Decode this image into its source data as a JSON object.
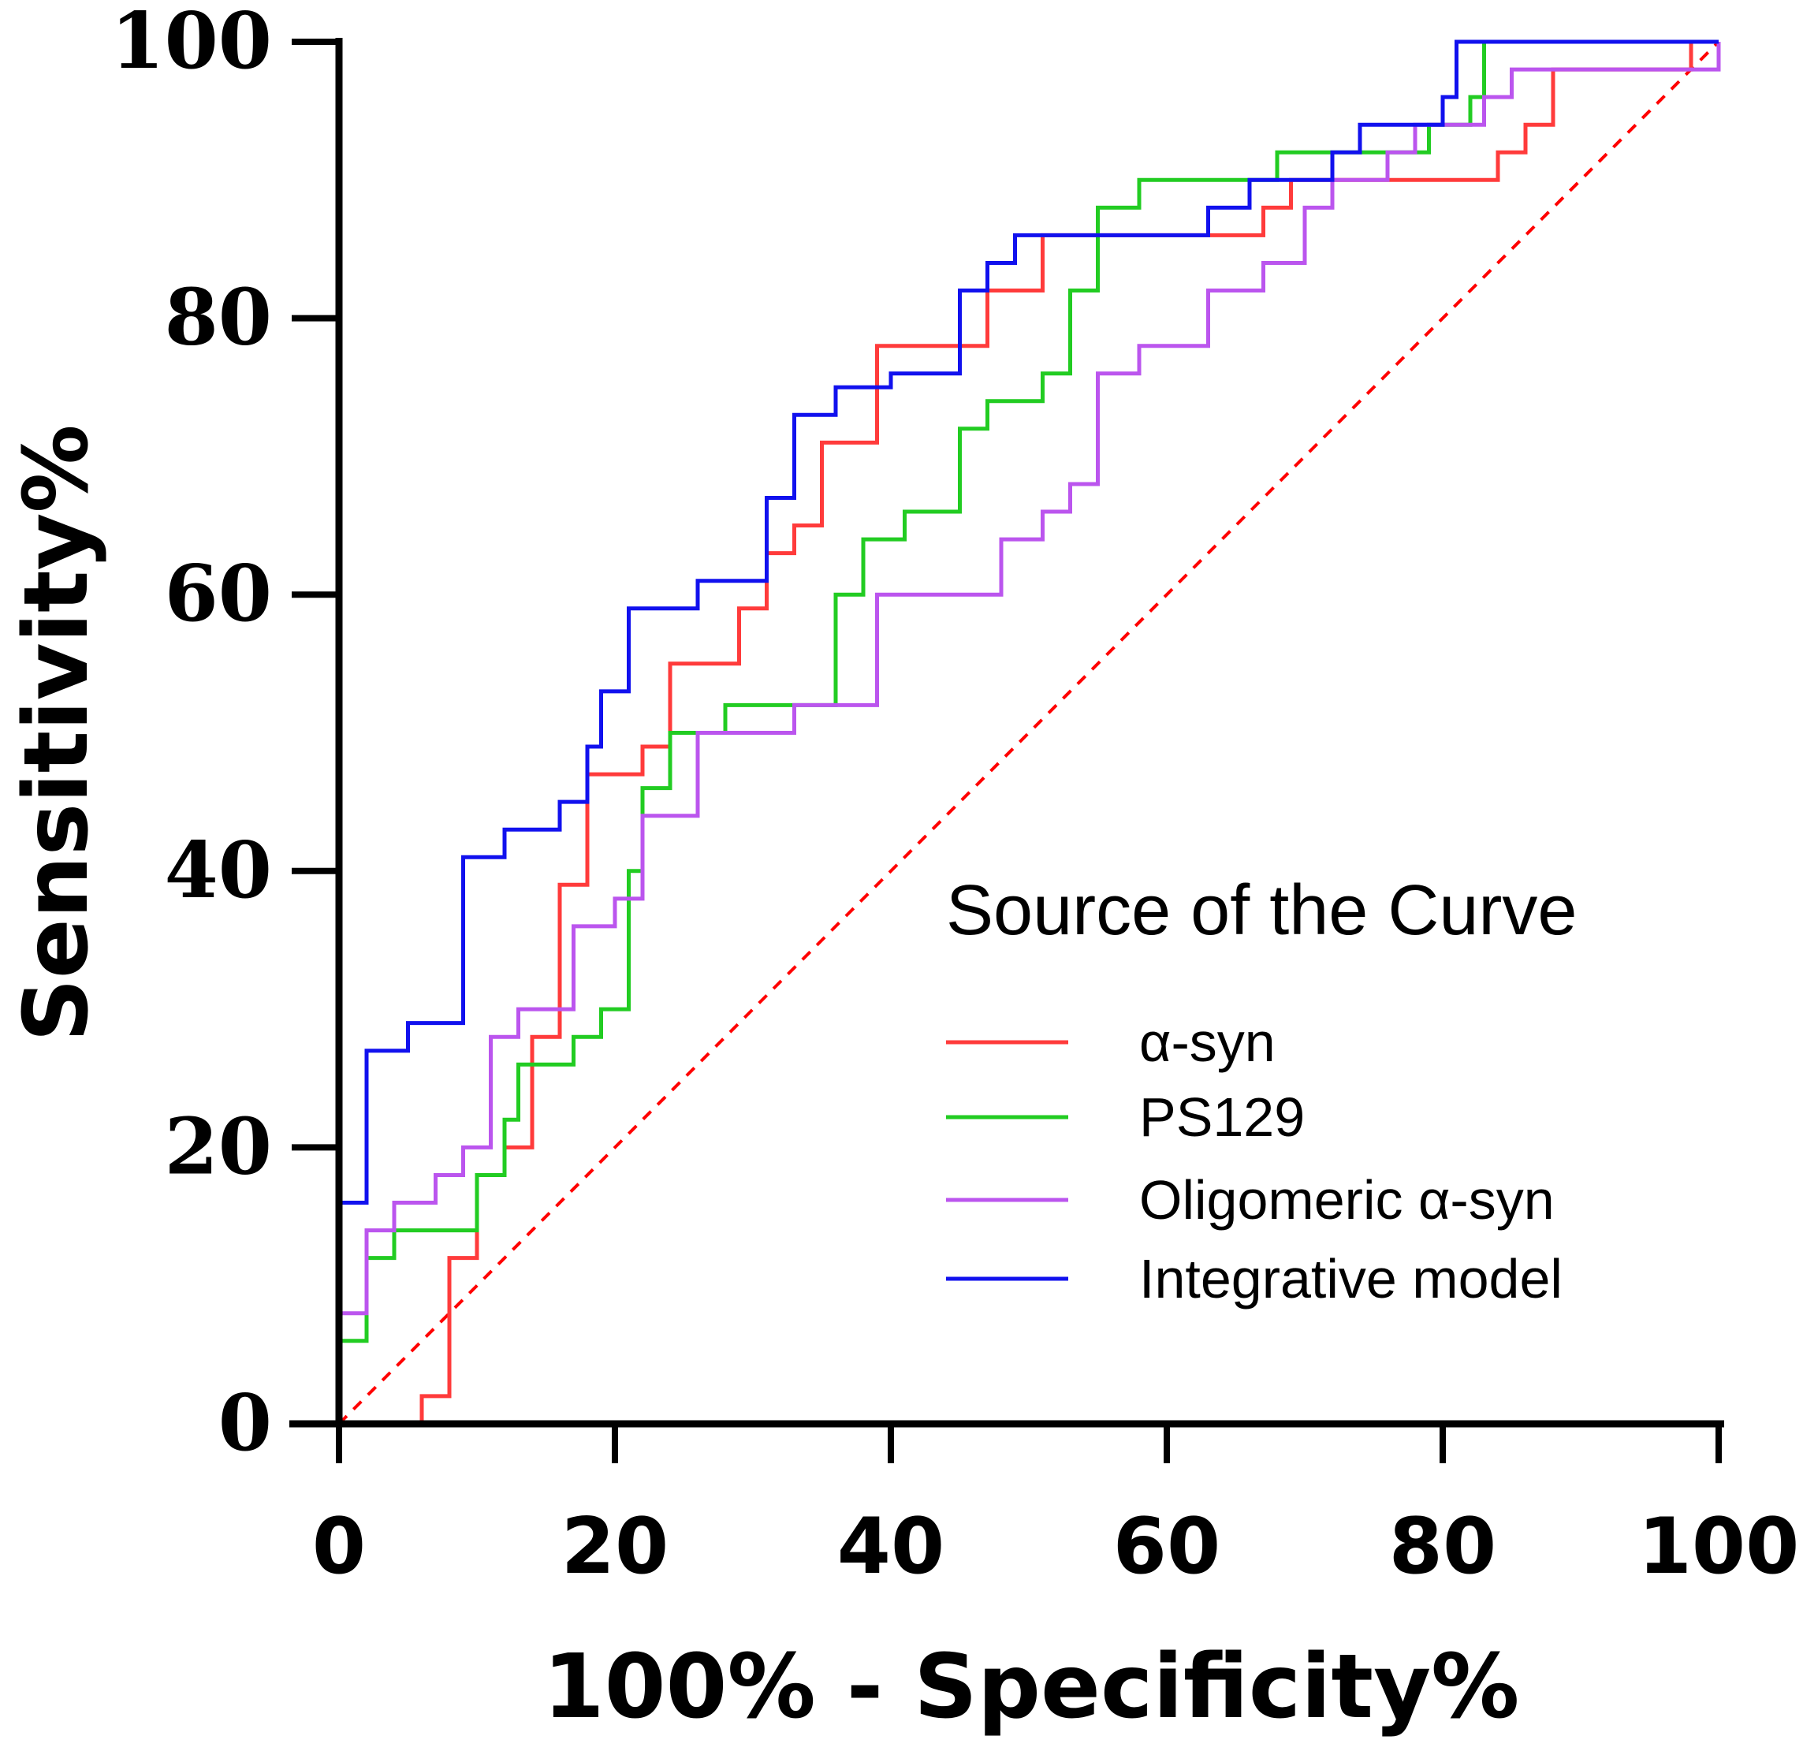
{
  "chart_data": {
    "type": "line",
    "title": "",
    "xlabel": "100% - Specificity%",
    "ylabel": "Sensitivity%",
    "xlim": [
      0,
      100
    ],
    "ylim": [
      0,
      100
    ],
    "x_ticks": [
      "0",
      "20",
      "40",
      "60",
      "80",
      "100"
    ],
    "y_ticks": [
      "0",
      "20",
      "40",
      "60",
      "80",
      "100"
    ],
    "grid": false,
    "legend_title": "Source of the Curve",
    "legend_position": "bottom-right",
    "reference_line": {
      "name": "Reference line",
      "color": "#ff0000",
      "style": "dashed",
      "points": [
        [
          0,
          0
        ],
        [
          100,
          100
        ]
      ]
    },
    "series": [
      {
        "name": "α-syn",
        "color": "#ff3b3b",
        "points": [
          [
            0,
            0
          ],
          [
            6,
            0
          ],
          [
            6,
            2
          ],
          [
            8,
            2
          ],
          [
            8,
            12
          ],
          [
            10,
            12
          ],
          [
            10,
            18
          ],
          [
            12,
            18
          ],
          [
            12,
            20
          ],
          [
            14,
            20
          ],
          [
            14,
            28
          ],
          [
            16,
            28
          ],
          [
            16,
            39
          ],
          [
            18,
            39
          ],
          [
            18,
            47
          ],
          [
            21,
            47
          ],
          [
            21,
            47
          ],
          [
            22,
            47
          ],
          [
            22,
            49
          ],
          [
            24,
            49
          ],
          [
            24,
            55
          ],
          [
            29,
            55
          ],
          [
            29,
            59
          ],
          [
            31,
            59
          ],
          [
            31,
            63
          ],
          [
            33,
            63
          ],
          [
            33,
            65
          ],
          [
            35,
            65
          ],
          [
            35,
            71
          ],
          [
            39,
            71
          ],
          [
            39,
            78
          ],
          [
            47,
            78
          ],
          [
            47,
            82
          ],
          [
            51,
            82
          ],
          [
            51,
            86
          ],
          [
            67,
            86
          ],
          [
            67,
            88
          ],
          [
            69,
            88
          ],
          [
            69,
            90
          ],
          [
            84,
            90
          ],
          [
            84,
            92
          ],
          [
            86,
            92
          ],
          [
            86,
            94
          ],
          [
            88,
            94
          ],
          [
            88,
            98
          ],
          [
            98,
            98
          ],
          [
            98,
            100
          ],
          [
            100,
            100
          ]
        ]
      },
      {
        "name": "PS129",
        "color": "#22cc22",
        "points": [
          [
            0,
            0
          ],
          [
            0,
            6
          ],
          [
            2,
            6
          ],
          [
            2,
            12
          ],
          [
            4,
            12
          ],
          [
            4,
            14
          ],
          [
            10,
            14
          ],
          [
            10,
            18
          ],
          [
            12,
            18
          ],
          [
            12,
            22
          ],
          [
            13,
            22
          ],
          [
            13,
            26
          ],
          [
            17,
            26
          ],
          [
            17,
            28
          ],
          [
            19,
            28
          ],
          [
            19,
            30
          ],
          [
            21,
            30
          ],
          [
            21,
            40
          ],
          [
            22,
            40
          ],
          [
            22,
            46
          ],
          [
            24,
            46
          ],
          [
            24,
            50
          ],
          [
            28,
            50
          ],
          [
            28,
            52
          ],
          [
            36,
            52
          ],
          [
            36,
            60
          ],
          [
            38,
            60
          ],
          [
            38,
            64
          ],
          [
            41,
            64
          ],
          [
            41,
            66
          ],
          [
            45,
            66
          ],
          [
            45,
            72
          ],
          [
            47,
            72
          ],
          [
            47,
            74
          ],
          [
            51,
            74
          ],
          [
            51,
            76
          ],
          [
            53,
            76
          ],
          [
            53,
            82
          ],
          [
            55,
            82
          ],
          [
            55,
            88
          ],
          [
            58,
            88
          ],
          [
            58,
            90
          ],
          [
            68,
            90
          ],
          [
            68,
            92
          ],
          [
            76,
            92
          ],
          [
            76,
            92
          ],
          [
            79,
            92
          ],
          [
            79,
            94
          ],
          [
            82,
            94
          ],
          [
            82,
            96
          ],
          [
            83,
            96
          ],
          [
            83,
            100
          ],
          [
            100,
            100
          ]
        ]
      },
      {
        "name": "Oligomeric α-syn",
        "color": "#bb55ee",
        "points": [
          [
            0,
            0
          ],
          [
            0,
            8
          ],
          [
            2,
            8
          ],
          [
            2,
            14
          ],
          [
            4,
            14
          ],
          [
            4,
            16
          ],
          [
            7,
            16
          ],
          [
            7,
            18
          ],
          [
            9,
            18
          ],
          [
            9,
            20
          ],
          [
            11,
            20
          ],
          [
            11,
            28
          ],
          [
            13,
            28
          ],
          [
            13,
            30
          ],
          [
            17,
            30
          ],
          [
            17,
            36
          ],
          [
            20,
            36
          ],
          [
            20,
            38
          ],
          [
            22,
            38
          ],
          [
            22,
            44
          ],
          [
            26,
            44
          ],
          [
            26,
            50
          ],
          [
            33,
            50
          ],
          [
            33,
            52
          ],
          [
            39,
            52
          ],
          [
            39,
            60
          ],
          [
            48,
            60
          ],
          [
            48,
            64
          ],
          [
            51,
            64
          ],
          [
            51,
            66
          ],
          [
            53,
            66
          ],
          [
            53,
            68
          ],
          [
            55,
            68
          ],
          [
            55,
            76
          ],
          [
            58,
            76
          ],
          [
            58,
            78
          ],
          [
            63,
            78
          ],
          [
            63,
            82
          ],
          [
            67,
            82
          ],
          [
            67,
            84
          ],
          [
            70,
            84
          ],
          [
            70,
            88
          ],
          [
            72,
            88
          ],
          [
            72,
            90
          ],
          [
            76,
            90
          ],
          [
            76,
            92
          ],
          [
            78,
            92
          ],
          [
            78,
            94
          ],
          [
            83,
            94
          ],
          [
            83,
            96
          ],
          [
            85,
            96
          ],
          [
            85,
            98
          ],
          [
            100,
            98
          ],
          [
            100,
            100
          ]
        ]
      },
      {
        "name": "Integrative model",
        "color": "#1111ee",
        "points": [
          [
            0,
            0
          ],
          [
            0,
            16
          ],
          [
            2,
            16
          ],
          [
            2,
            27
          ],
          [
            5,
            27
          ],
          [
            5,
            29
          ],
          [
            9,
            29
          ],
          [
            9,
            41
          ],
          [
            12,
            41
          ],
          [
            12,
            43
          ],
          [
            16,
            43
          ],
          [
            16,
            45
          ],
          [
            18,
            45
          ],
          [
            18,
            49
          ],
          [
            19,
            49
          ],
          [
            19,
            53
          ],
          [
            21,
            53
          ],
          [
            21,
            59
          ],
          [
            26,
            59
          ],
          [
            26,
            61
          ],
          [
            31,
            61
          ],
          [
            31,
            67
          ],
          [
            33,
            67
          ],
          [
            33,
            73
          ],
          [
            36,
            73
          ],
          [
            36,
            75
          ],
          [
            39,
            75
          ],
          [
            39,
            75
          ],
          [
            40,
            75
          ],
          [
            40,
            76
          ],
          [
            45,
            76
          ],
          [
            45,
            82
          ],
          [
            47,
            82
          ],
          [
            47,
            84
          ],
          [
            49,
            84
          ],
          [
            49,
            86
          ],
          [
            63,
            86
          ],
          [
            63,
            88
          ],
          [
            66,
            88
          ],
          [
            66,
            90
          ],
          [
            72,
            90
          ],
          [
            72,
            92
          ],
          [
            74,
            92
          ],
          [
            74,
            94
          ],
          [
            78,
            94
          ],
          [
            78,
            94
          ],
          [
            80,
            94
          ],
          [
            80,
            96
          ],
          [
            81,
            96
          ],
          [
            81,
            100
          ],
          [
            100,
            100
          ]
        ]
      }
    ]
  }
}
